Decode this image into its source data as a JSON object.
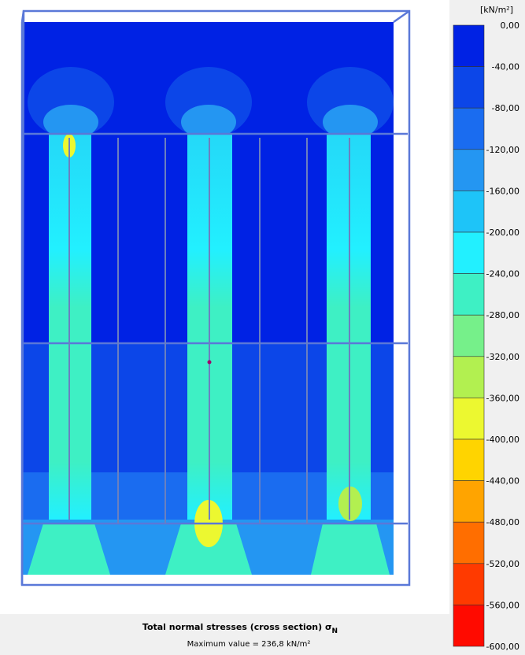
{
  "legend": {
    "unit": "[kN/m²]",
    "labels": [
      "0,00",
      "-40,00",
      "-80,00",
      "-120,00",
      "-160,00",
      "-200,00",
      "-240,00",
      "-280,00",
      "-320,00",
      "-360,00",
      "-400,00",
      "-440,00",
      "-480,00",
      "-520,00",
      "-560,00",
      "-600,00"
    ],
    "colors": [
      "#0022e4",
      "#0c46e8",
      "#1a6cf0",
      "#2496f2",
      "#1ec4f8",
      "#22f0ff",
      "#3ef0c4",
      "#76f08a",
      "#b2f050",
      "#ecf830",
      "#ffd400",
      "#ffa400",
      "#ff6e00",
      "#ff3a00",
      "#ff0a00"
    ]
  },
  "caption": {
    "title": "Total normal stresses (cross section) σ",
    "title_subscript": "N",
    "max_value": "Maximum value = 236,8 kN/m²"
  }
}
